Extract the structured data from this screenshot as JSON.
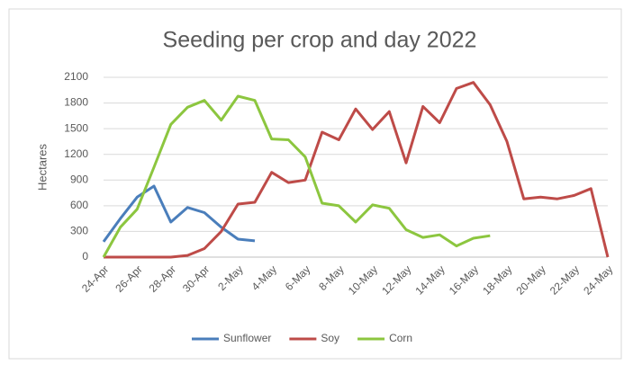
{
  "chart_data": {
    "type": "line",
    "title": "Seeding per crop and day 2022",
    "y_label": "Hectares",
    "categories": [
      "24-Apr",
      null,
      "26-Apr",
      null,
      "28-Apr",
      null,
      "30-Apr",
      null,
      "2-May",
      null,
      "4-May",
      null,
      "6-May",
      null,
      "8-May",
      null,
      "10-May",
      null,
      "12-May",
      null,
      "14-May",
      null,
      "16-May",
      null,
      "18-May",
      null,
      "20-May",
      null,
      "22-May",
      null,
      "24-May"
    ],
    "series": [
      {
        "name": "Sunflower",
        "color": "#4a7ebb",
        "values": [
          180,
          450,
          700,
          830,
          410,
          580,
          520,
          350,
          210,
          190,
          null,
          null,
          null,
          null,
          null,
          null,
          null,
          null,
          null,
          null,
          null,
          null,
          null,
          null,
          null,
          null,
          null,
          null,
          null,
          null,
          null
        ]
      },
      {
        "name": "Soy",
        "color": "#be4b48",
        "values": [
          0,
          0,
          0,
          0,
          0,
          20,
          100,
          300,
          620,
          640,
          990,
          870,
          900,
          1460,
          1370,
          1730,
          1490,
          1700,
          1100,
          1760,
          1570,
          1970,
          2040,
          1780,
          1350,
          680,
          700,
          680,
          720,
          800,
          0
        ]
      },
      {
        "name": "Corn",
        "color": "#8cc63f",
        "values": [
          0,
          350,
          560,
          1050,
          1550,
          1750,
          1830,
          1600,
          1880,
          1830,
          1380,
          1370,
          1170,
          630,
          600,
          410,
          610,
          570,
          320,
          230,
          260,
          130,
          220,
          250,
          null,
          null,
          null,
          null,
          null,
          null,
          null
        ]
      }
    ],
    "ylim": [
      0,
      2100
    ],
    "yticks": [
      0,
      300,
      600,
      900,
      1200,
      1500,
      1800,
      2100
    ],
    "grid": true,
    "legend": "bottom"
  }
}
